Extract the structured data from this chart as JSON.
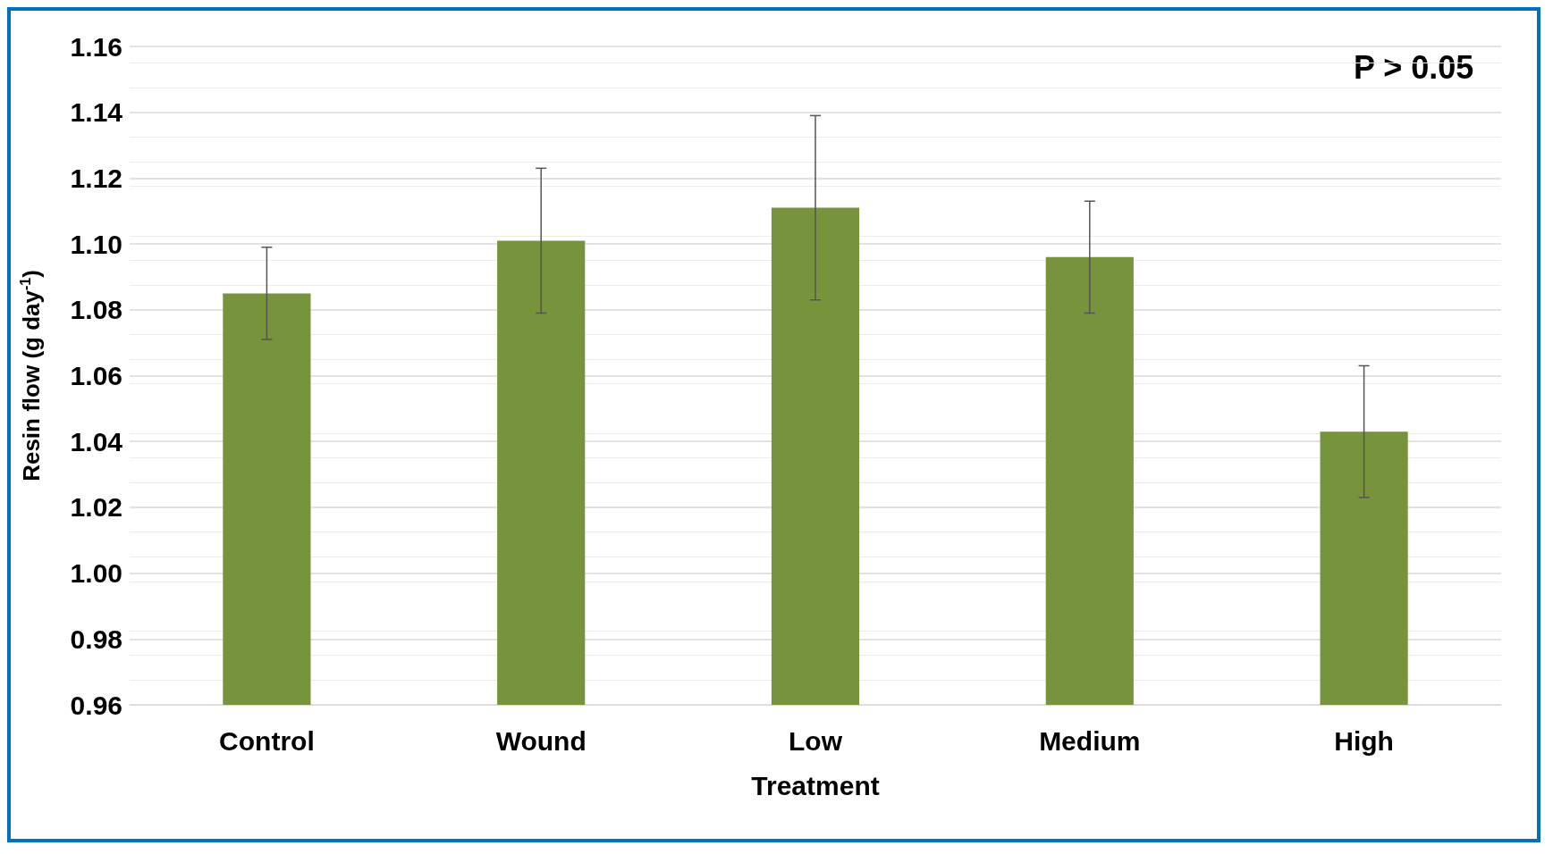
{
  "chart_data": {
    "type": "bar",
    "xlabel": "Treatment",
    "ylabel": "Resin flow (g day$^{-1}$)",
    "categories": [
      "Control",
      "Wound",
      "Low",
      "Medium",
      "High"
    ],
    "values": [
      1.085,
      1.101,
      1.111,
      1.096,
      1.043
    ],
    "errors": [
      0.014,
      0.022,
      0.028,
      0.017,
      0.02
    ],
    "color": "#77933c",
    "ylim": [
      0.96,
      1.16
    ],
    "yticks": [
      0.96,
      0.98,
      {
        "value": 1.0,
        "label": "1.00"
      },
      1.02,
      1.04,
      1.06,
      1.08,
      {
        "value": 1.1,
        "label": "1.10"
      },
      1.12,
      1.14,
      1.16
    ],
    "grid": "y",
    "annotations": [
      "P > 0.05"
    ]
  }
}
